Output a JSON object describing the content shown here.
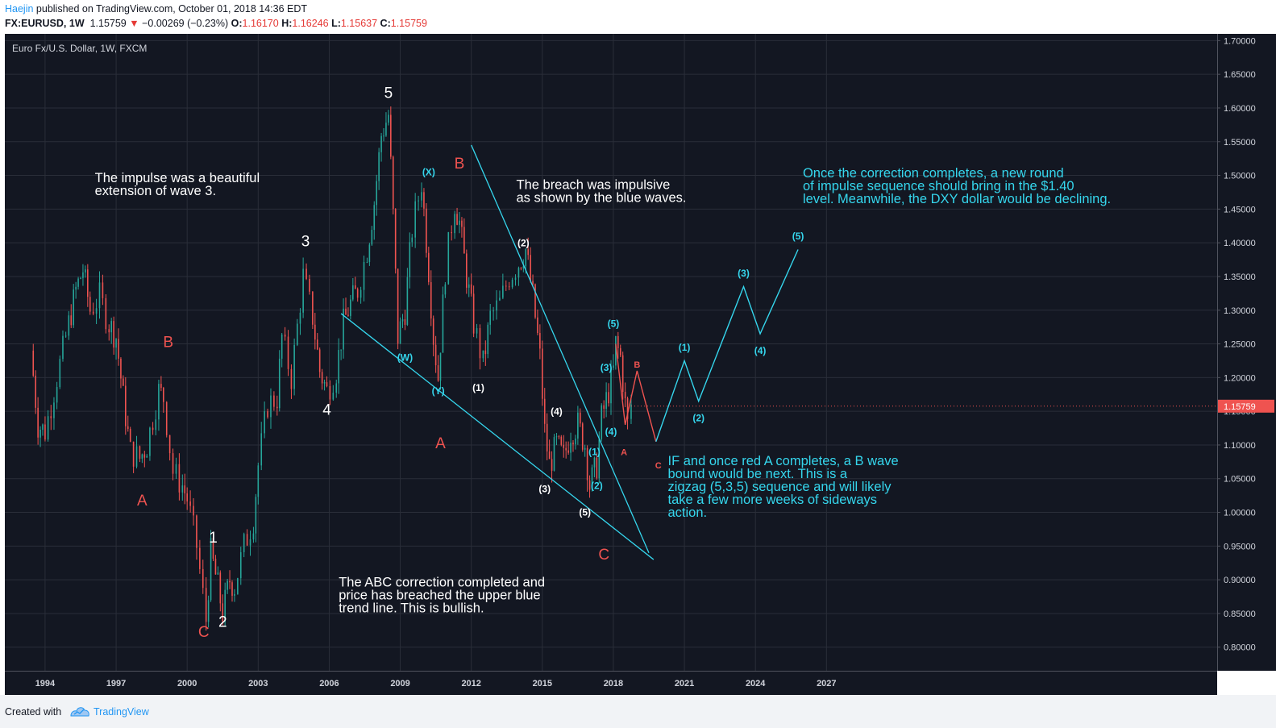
{
  "header": {
    "author": "Haejin",
    "published_text": " published on TradingView.com, October 01, 2018 14:36 EDT",
    "symbol": "FX:EURUSD, 1W",
    "last": "1.15759",
    "change_arrow": "▼",
    "change": "−0.00269 (−0.23%)",
    "o_label": "O:",
    "o": "1.16170",
    "h_label": "H:",
    "h": "1.16246",
    "l_label": "L:",
    "l": "1.15637",
    "c_label": "C:",
    "c": "1.15759"
  },
  "footer": {
    "created_with": "Created with",
    "brand": "TradingView"
  },
  "chart_data": {
    "type": "line",
    "title": "Euro Fx/U.S. Dollar, 1W, FXCM",
    "x_ticks": [
      "1994",
      "1997",
      "2000",
      "2003",
      "2006",
      "2009",
      "2012",
      "2015",
      "2018",
      "2021",
      "2024",
      "2027"
    ],
    "y_ticks": [
      "0.80000",
      "0.85000",
      "0.90000",
      "0.95000",
      "1.00000",
      "1.05000",
      "1.10000",
      "1.15000",
      "1.20000",
      "1.25000",
      "1.30000",
      "1.35000",
      "1.40000",
      "1.45000",
      "1.50000",
      "1.55000",
      "1.60000",
      "1.65000",
      "1.70000"
    ],
    "ylim": [
      0.765,
      1.71
    ],
    "xlim": [
      1992.3,
      2043.5
    ],
    "last_price_label": "1.15759",
    "colors": {
      "background": "#131722",
      "grid": "#2a2e39",
      "axis_text": "#d1d4dc",
      "up": "#26a69a",
      "down": "#ef5350",
      "annotation_white": "#ffffff",
      "annotation_red": "#ef5350",
      "cyan": "#35d6ed",
      "price_tag": "#ef5350"
    },
    "price_series": [
      [
        1993.4,
        1.24
      ],
      [
        1993.7,
        1.13
      ],
      [
        1994.0,
        1.12
      ],
      [
        1994.5,
        1.2
      ],
      [
        1995.0,
        1.28
      ],
      [
        1995.3,
        1.33
      ],
      [
        1995.6,
        1.36
      ],
      [
        1995.9,
        1.3
      ],
      [
        1996.3,
        1.32
      ],
      [
        1996.7,
        1.28
      ],
      [
        1997.0,
        1.26
      ],
      [
        1997.3,
        1.17
      ],
      [
        1997.6,
        1.09
      ],
      [
        1998.0,
        1.08
      ],
      [
        1998.3,
        1.1
      ],
      [
        1998.8,
        1.18
      ],
      [
        1999.0,
        1.17
      ],
      [
        1999.4,
        1.06
      ],
      [
        1999.8,
        1.04
      ],
      [
        2000.0,
        1.02
      ],
      [
        2000.4,
        0.95
      ],
      [
        2000.8,
        0.84
      ],
      [
        2001.0,
        0.94
      ],
      [
        2001.3,
        0.89
      ],
      [
        2001.5,
        0.85
      ],
      [
        2001.8,
        0.9
      ],
      [
        2002.0,
        0.89
      ],
      [
        2002.4,
        0.95
      ],
      [
        2002.8,
        0.99
      ],
      [
        2003.0,
        1.07
      ],
      [
        2003.4,
        1.16
      ],
      [
        2003.8,
        1.17
      ],
      [
        2004.0,
        1.26
      ],
      [
        2004.4,
        1.2
      ],
      [
        2004.9,
        1.35
      ],
      [
        2005.3,
        1.29
      ],
      [
        2005.6,
        1.21
      ],
      [
        2005.9,
        1.18
      ],
      [
        2006.3,
        1.21
      ],
      [
        2006.6,
        1.28
      ],
      [
        2006.9,
        1.31
      ],
      [
        2007.2,
        1.33
      ],
      [
        2007.6,
        1.39
      ],
      [
        2007.9,
        1.46
      ],
      [
        2008.2,
        1.56
      ],
      [
        2008.5,
        1.59
      ],
      [
        2008.7,
        1.44
      ],
      [
        2008.9,
        1.26
      ],
      [
        2009.2,
        1.3
      ],
      [
        2009.5,
        1.42
      ],
      [
        2009.9,
        1.49
      ],
      [
        2010.2,
        1.36
      ],
      [
        2010.4,
        1.26
      ],
      [
        2010.6,
        1.2
      ],
      [
        2010.9,
        1.36
      ],
      [
        2011.3,
        1.46
      ],
      [
        2011.5,
        1.43
      ],
      [
        2011.8,
        1.35
      ],
      [
        2012.1,
        1.28
      ],
      [
        2012.5,
        1.22
      ],
      [
        2012.8,
        1.29
      ],
      [
        2013.2,
        1.31
      ],
      [
        2013.6,
        1.35
      ],
      [
        2014.0,
        1.37
      ],
      [
        2014.3,
        1.39
      ],
      [
        2014.6,
        1.32
      ],
      [
        2014.9,
        1.23
      ],
      [
        2015.1,
        1.12
      ],
      [
        2015.3,
        1.07
      ],
      [
        2015.6,
        1.1
      ],
      [
        2015.9,
        1.08
      ],
      [
        2016.2,
        1.12
      ],
      [
        2016.5,
        1.13
      ],
      [
        2016.8,
        1.1
      ],
      [
        2017.0,
        1.04
      ],
      [
        2017.3,
        1.07
      ],
      [
        2017.5,
        1.14
      ],
      [
        2017.8,
        1.18
      ],
      [
        2018.0,
        1.21
      ],
      [
        2018.1,
        1.25
      ],
      [
        2018.3,
        1.23
      ],
      [
        2018.5,
        1.16
      ],
      [
        2018.6,
        1.13
      ],
      [
        2018.75,
        1.16
      ]
    ],
    "projection_red": [
      [
        2018.1,
        1.25
      ],
      [
        2018.5,
        1.13
      ],
      [
        2019.0,
        1.21
      ],
      [
        2019.8,
        1.105
      ]
    ],
    "projection_cyan": [
      [
        2019.8,
        1.105
      ],
      [
        2021.0,
        1.225
      ],
      [
        2021.6,
        1.165
      ],
      [
        2023.5,
        1.335
      ],
      [
        2024.2,
        1.265
      ],
      [
        2025.8,
        1.39
      ]
    ],
    "trendlines": [
      {
        "color": "cyan",
        "from": [
          2006.5,
          1.295
        ],
        "to": [
          2019.7,
          0.93
        ]
      },
      {
        "color": "cyan",
        "from": [
          2012.0,
          1.545
        ],
        "to": [
          2019.5,
          0.94
        ]
      }
    ],
    "wave_labels": [
      {
        "text": "5",
        "x": 2008.5,
        "y": 1.615,
        "color": "white",
        "size": 19
      },
      {
        "text": "3",
        "x": 2005.0,
        "y": 1.395,
        "color": "white",
        "size": 19
      },
      {
        "text": "4",
        "x": 2005.9,
        "y": 1.145,
        "color": "white",
        "size": 19
      },
      {
        "text": "1",
        "x": 2001.1,
        "y": 0.955,
        "color": "white",
        "size": 19
      },
      {
        "text": "2",
        "x": 2001.5,
        "y": 0.83,
        "color": "white",
        "size": 19
      },
      {
        "text": "A",
        "x": 1998.1,
        "y": 1.01,
        "color": "red",
        "size": 19
      },
      {
        "text": "B",
        "x": 1999.2,
        "y": 1.245,
        "color": "red",
        "size": 19
      },
      {
        "text": "C",
        "x": 2000.7,
        "y": 0.815,
        "color": "red",
        "size": 19
      },
      {
        "text": "B",
        "x": 2011.5,
        "y": 1.51,
        "color": "red",
        "size": 19
      },
      {
        "text": "A",
        "x": 2010.7,
        "y": 1.095,
        "color": "red",
        "size": 19
      },
      {
        "text": "C",
        "x": 2017.6,
        "y": 0.93,
        "color": "red",
        "size": 19
      },
      {
        "text": "(X)",
        "x": 2010.2,
        "y": 1.5,
        "color": "cyan",
        "size": 12
      },
      {
        "text": "(W)",
        "x": 2009.2,
        "y": 1.225,
        "color": "cyan",
        "size": 12
      },
      {
        "text": "(Y)",
        "x": 2010.6,
        "y": 1.175,
        "color": "cyan",
        "size": 12
      },
      {
        "text": "(2)",
        "x": 2014.2,
        "y": 1.395,
        "color": "white",
        "size": 12
      },
      {
        "text": "(1)",
        "x": 2012.3,
        "y": 1.18,
        "color": "white",
        "size": 12
      },
      {
        "text": "(4)",
        "x": 2015.6,
        "y": 1.145,
        "color": "white",
        "size": 12
      },
      {
        "text": "(3)",
        "x": 2015.1,
        "y": 1.03,
        "color": "white",
        "size": 12
      },
      {
        "text": "(5)",
        "x": 2016.8,
        "y": 0.995,
        "color": "white",
        "size": 12
      },
      {
        "text": "(5)",
        "x": 2018.0,
        "y": 1.275,
        "color": "cyan",
        "size": 12
      },
      {
        "text": "(3)",
        "x": 2017.7,
        "y": 1.21,
        "color": "cyan",
        "size": 12
      },
      {
        "text": "(4)",
        "x": 2017.9,
        "y": 1.115,
        "color": "cyan",
        "size": 12
      },
      {
        "text": "(1)",
        "x": 2017.2,
        "y": 1.085,
        "color": "cyan",
        "size": 12
      },
      {
        "text": "(2)",
        "x": 2017.3,
        "y": 1.035,
        "color": "cyan",
        "size": 12
      },
      {
        "text": "A",
        "x": 2018.45,
        "y": 1.085,
        "color": "red",
        "size": 11
      },
      {
        "text": "B",
        "x": 2019.0,
        "y": 1.215,
        "color": "red",
        "size": 11
      },
      {
        "text": "C",
        "x": 2019.9,
        "y": 1.065,
        "color": "red",
        "size": 11
      },
      {
        "text": "(1)",
        "x": 2021.0,
        "y": 1.24,
        "color": "cyan",
        "size": 12
      },
      {
        "text": "(2)",
        "x": 2021.6,
        "y": 1.135,
        "color": "cyan",
        "size": 12
      },
      {
        "text": "(3)",
        "x": 2023.5,
        "y": 1.35,
        "color": "cyan",
        "size": 12
      },
      {
        "text": "(4)",
        "x": 2024.2,
        "y": 1.235,
        "color": "cyan",
        "size": 12
      },
      {
        "text": "(5)",
        "x": 2025.8,
        "y": 1.405,
        "color": "cyan",
        "size": 12
      }
    ],
    "annotations": [
      {
        "color": "white",
        "lines": [
          "The impulse was a beautiful",
          "extension of wave 3."
        ],
        "x": 1996.1,
        "y": 1.49
      },
      {
        "color": "white",
        "lines": [
          "The breach was impulsive",
          "as shown by the blue waves."
        ],
        "x": 2013.9,
        "y": 1.48
      },
      {
        "color": "cyan",
        "lines": [
          "Once the correction completes, a new round",
          "of impulse sequence should bring in the $1.40",
          "level. Meanwhile, the DXY dollar would be declining."
        ],
        "x": 2026.0,
        "y": 1.497
      },
      {
        "color": "cyan",
        "lines": [
          "IF and once red A completes, a B wave",
          "bound would be next. This is a",
          "zigzag (5,3,5) sequence and will likely",
          "take a few more weeks of sideways",
          "action."
        ],
        "x": 2020.3,
        "y": 1.07
      },
      {
        "color": "white",
        "lines": [
          "The ABC correction completed and",
          "price has breached the upper blue",
          "trend line. This is bullish."
        ],
        "x": 2006.4,
        "y": 0.89
      }
    ]
  }
}
